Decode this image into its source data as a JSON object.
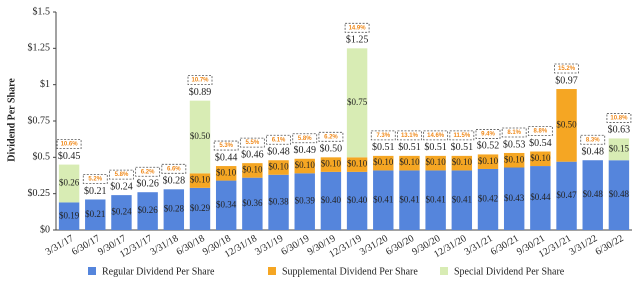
{
  "chart_data": {
    "type": "stacked_bar",
    "y_label": "Dividend Per Share",
    "categories": [
      "3/31/17",
      "6/30/17",
      "9/30/17",
      "12/31/17",
      "3/31/18",
      "6/30/18",
      "9/30/18",
      "12/31/18",
      "3/31/19",
      "6/30/19",
      "9/30/19",
      "12/31/19",
      "3/31/20",
      "6/30/20",
      "9/30/20",
      "12/31/20",
      "3/31/21",
      "6/30/21",
      "9/30/21",
      "12/31/21",
      "3/31/22",
      "6/30/22"
    ],
    "series": [
      {
        "name": "Regular Dividend Per Share",
        "color": "#5585dc",
        "values": [
          0.19,
          0.21,
          0.24,
          0.26,
          0.28,
          0.29,
          0.34,
          0.36,
          0.38,
          0.39,
          0.4,
          0.4,
          0.41,
          0.41,
          0.41,
          0.41,
          0.42,
          0.43,
          0.44,
          0.47,
          0.48,
          0.48
        ],
        "value_labels": [
          "$0.19",
          "$0.21",
          "$0.24",
          "$0.26",
          "$0.28",
          "$0.29",
          "$0.34",
          "$0.36",
          "$0.38",
          "$0.39",
          "$0.40",
          "$0.40",
          "$0.41",
          "$0.41",
          "$0.41",
          "$0.41",
          "$0.42",
          "$0.43",
          "$0.44",
          "$0.47",
          "$0.48",
          "$0.48"
        ]
      },
      {
        "name": "Supplemental Dividend Per Share",
        "color": "#f5a623",
        "values": [
          null,
          null,
          null,
          null,
          null,
          0.1,
          0.1,
          0.1,
          0.1,
          0.1,
          0.1,
          0.1,
          0.1,
          0.1,
          0.1,
          0.1,
          0.1,
          0.1,
          0.1,
          0.5,
          null,
          null
        ],
        "value_labels": [
          null,
          null,
          null,
          null,
          null,
          "$0.10",
          "$0.10",
          "$0.10",
          "$0.10",
          "$0.10",
          "$0.10",
          "$0.10",
          "$0.10",
          "$0.10",
          "$0.10",
          "$0.10",
          "$0.10",
          "$0.10",
          "$0.10",
          "$0.50",
          null,
          null
        ]
      },
      {
        "name": "Special Dividend Per Share",
        "color": "#d8ecb4",
        "values": [
          0.26,
          null,
          null,
          null,
          null,
          0.5,
          null,
          null,
          null,
          null,
          null,
          0.75,
          null,
          null,
          null,
          null,
          null,
          null,
          null,
          null,
          null,
          0.15
        ],
        "value_labels": [
          "$0.26",
          null,
          null,
          null,
          null,
          "$0.50",
          null,
          null,
          null,
          null,
          null,
          "$0.75",
          null,
          null,
          null,
          null,
          null,
          null,
          null,
          null,
          null,
          "$0.15"
        ]
      }
    ],
    "totals": [
      0.45,
      0.21,
      0.24,
      0.26,
      0.28,
      0.89,
      0.44,
      0.46,
      0.48,
      0.49,
      0.5,
      1.25,
      0.51,
      0.51,
      0.51,
      0.51,
      0.52,
      0.53,
      0.54,
      0.97,
      0.48,
      0.63
    ],
    "total_labels": [
      "$0.45",
      "$0.21",
      "$0.24",
      "$0.26",
      "$0.28",
      "$0.89",
      "$0.44",
      "$0.46",
      "$0.48",
      "$0.49",
      "$0.50",
      "$1.25",
      "$0.51",
      "$0.51",
      "$0.51",
      "$0.51",
      "$0.52",
      "$0.53",
      "$0.54",
      "$0.97",
      "$0.48",
      "$0.63"
    ],
    "annotations": [
      "10.6%",
      "5.2%",
      "5.8%",
      "6.2%",
      "6.6%",
      "10.7%",
      "5.3%",
      "5.5%",
      "6.1%",
      "5.8%",
      "6.2%",
      "14.9%",
      "7.3%",
      "13.1%",
      "14.6%",
      "11.5%",
      "9.4%",
      "8.1%",
      "8.8%",
      "15.2%",
      "8.3%",
      "10.8%"
    ],
    "ylim": [
      0,
      1.5
    ],
    "yticks": [
      {
        "value": 0,
        "label": "$0"
      },
      {
        "value": 0.25,
        "label": "$0.25"
      },
      {
        "value": 0.5,
        "label": "$0.5"
      },
      {
        "value": 0.75,
        "label": "$0.75"
      },
      {
        "value": 1,
        "label": "$1"
      },
      {
        "value": 1.25,
        "label": "$1.25"
      },
      {
        "value": 1.5,
        "label": "$1.5"
      }
    ],
    "legend": "bottom"
  }
}
